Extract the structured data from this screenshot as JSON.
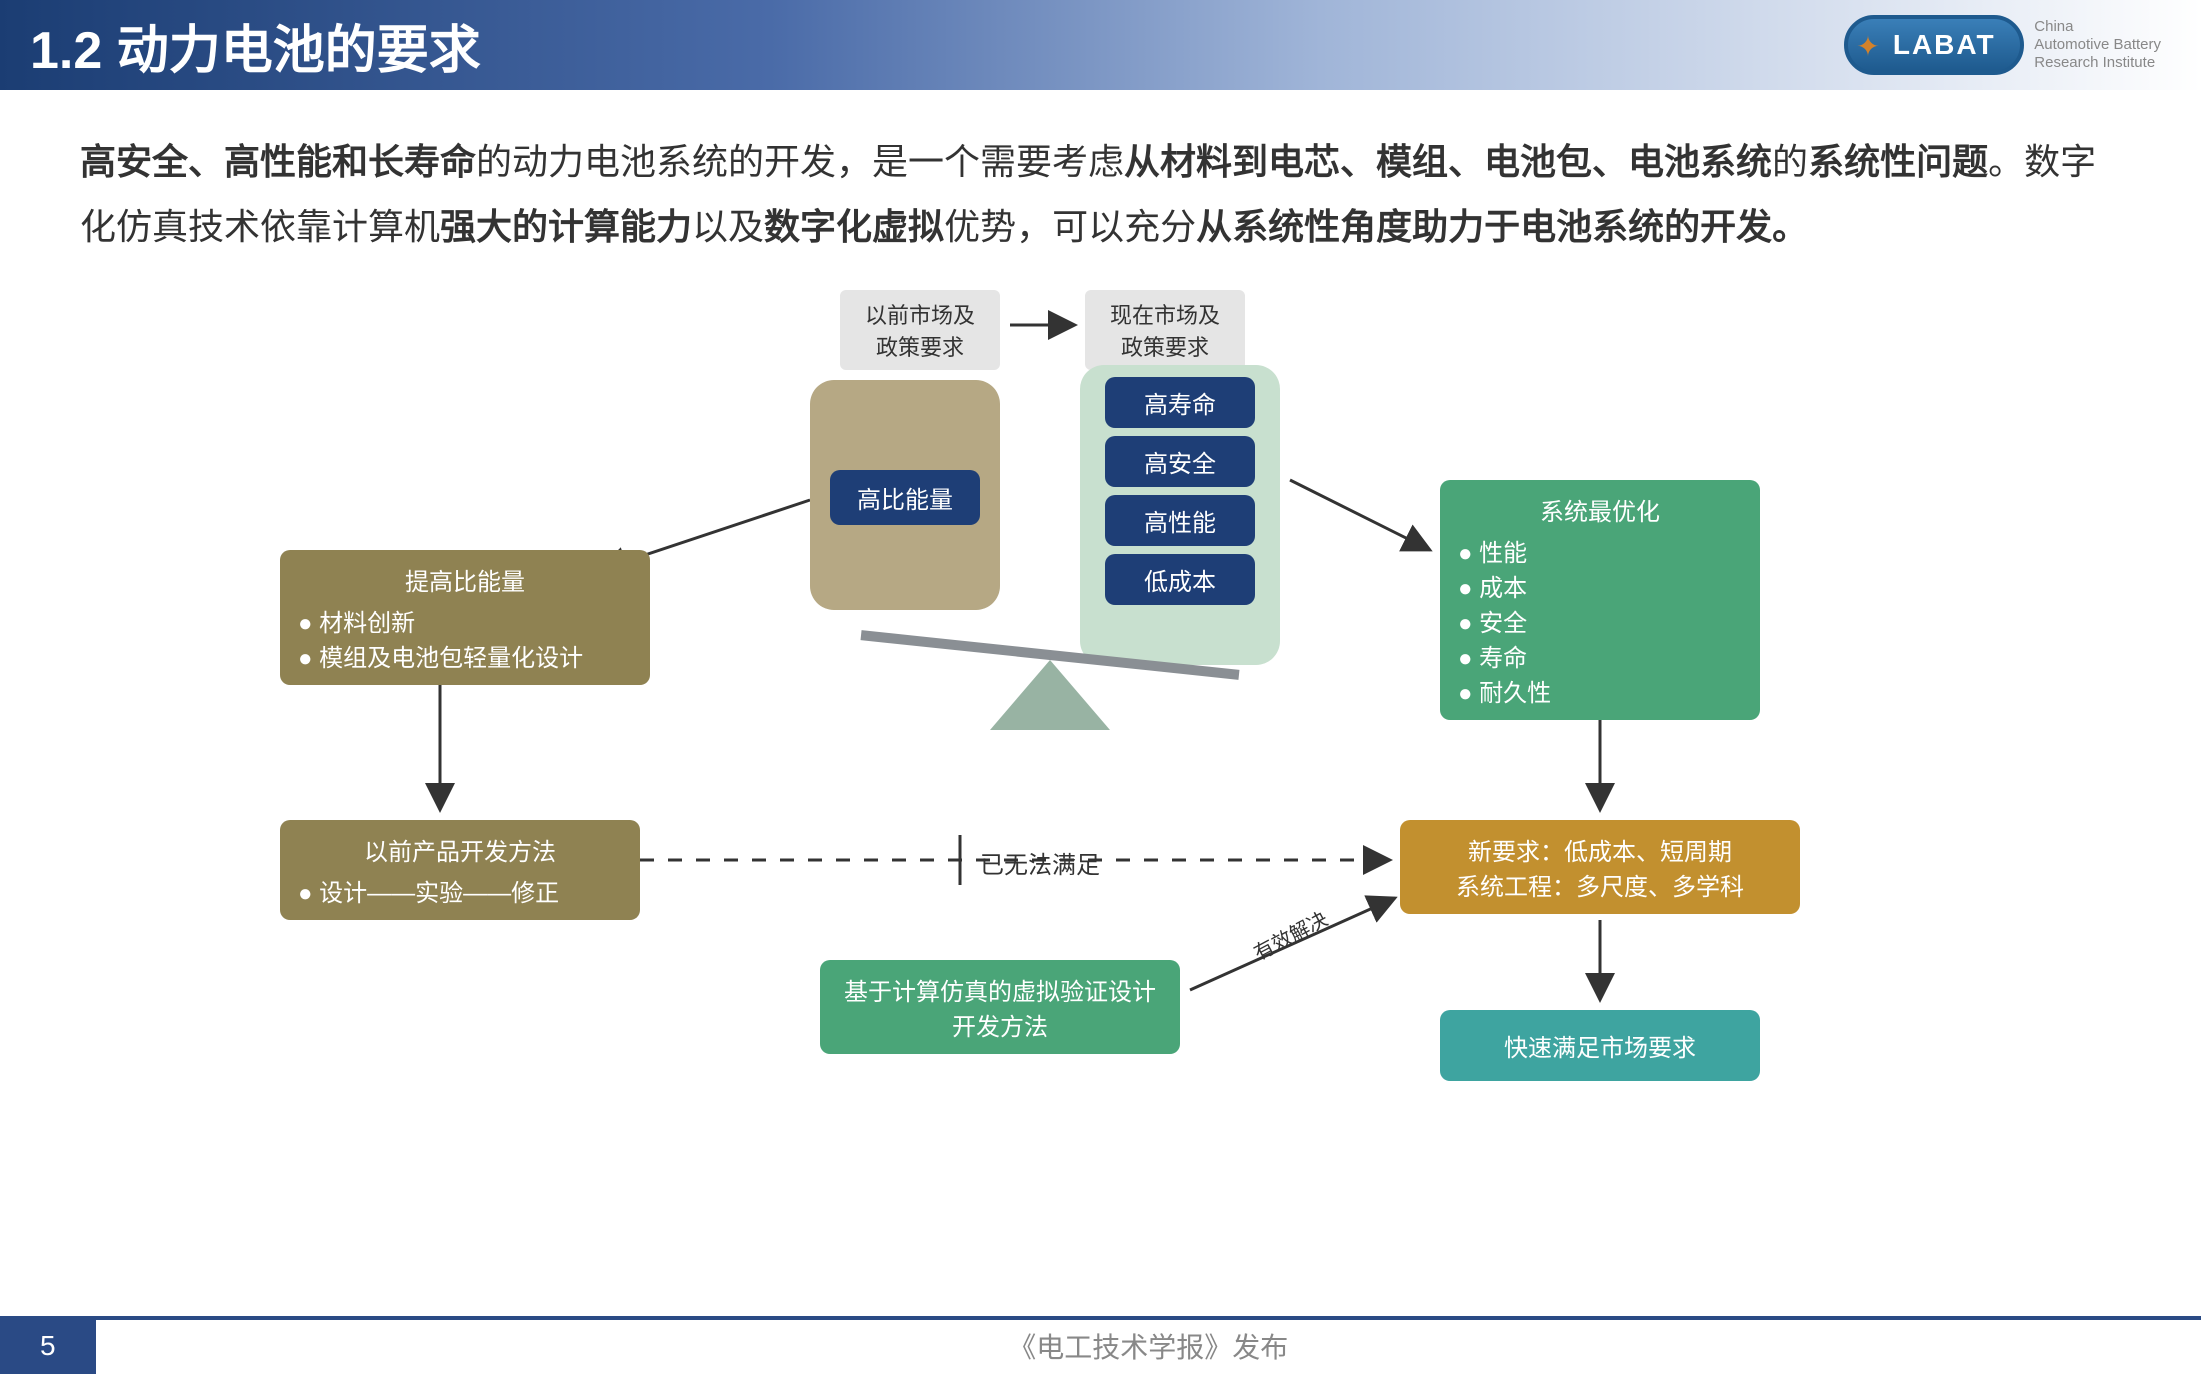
{
  "header": {
    "title": "1.2 动力电池的要求"
  },
  "logo": {
    "text": "LABAT",
    "sub1": "China",
    "sub2": "Automotive Battery",
    "sub3": "Research Institute"
  },
  "body": {
    "p1_b1": "高安全、高性能和长寿命",
    "p1_t1": "的动力电池系统的开发，是一个需要考虑",
    "p1_b2": "从材料到电芯、模组、电池包、电池系统",
    "p1_t2": "的",
    "p1_b3": "系统性问题",
    "p1_t3": "。数字化仿真技术依靠计算机",
    "p1_b4": "强大的计算能力",
    "p1_t4": "以及",
    "p1_b5": "数字化虚拟",
    "p1_t5": "优势，可以充分",
    "p1_b6": "从系统性角度助力于电池系统的开发。"
  },
  "diagram": {
    "topLabels": {
      "left": "以前市场及\n政策要求",
      "right": "现在市场及\n政策要求"
    },
    "leftPan": {
      "item": "高比能量"
    },
    "rightPan": {
      "items": [
        "高寿命",
        "高安全",
        "高性能",
        "低成本"
      ]
    },
    "leftTopBox": {
      "title": "提高比能量",
      "items": [
        "材料创新",
        "模组及电池包轻量化设计"
      ]
    },
    "rightTopBox": {
      "title": "系统最优化",
      "items": [
        "性能",
        "成本",
        "安全",
        "寿命",
        "耐久性"
      ]
    },
    "leftBottomBox": {
      "title": "以前产品开发方法",
      "item": "设计——实验——修正"
    },
    "midLabel": "已无法满足",
    "rightMidBox": {
      "line1": "新要求：低成本、短周期",
      "line2": "系统工程：多尺度、多学科"
    },
    "greenBottomBox": "基于计算仿真的虚拟验证设计开发方法",
    "diagLabel": "有效解决",
    "tealBox": "快速满足市场要求"
  },
  "footer": {
    "pageNum": "5",
    "text": "《电工技术学报》发布"
  },
  "colors": {
    "olive": "#8f8252",
    "navy": "#1e3e76",
    "green": "#4aa578",
    "ochre": "#c2902f",
    "teal": "#3ea4a0",
    "grey": "#e5e5e5",
    "headerGradStart": "#1b3d73",
    "footerBar": "#2a4a85"
  }
}
